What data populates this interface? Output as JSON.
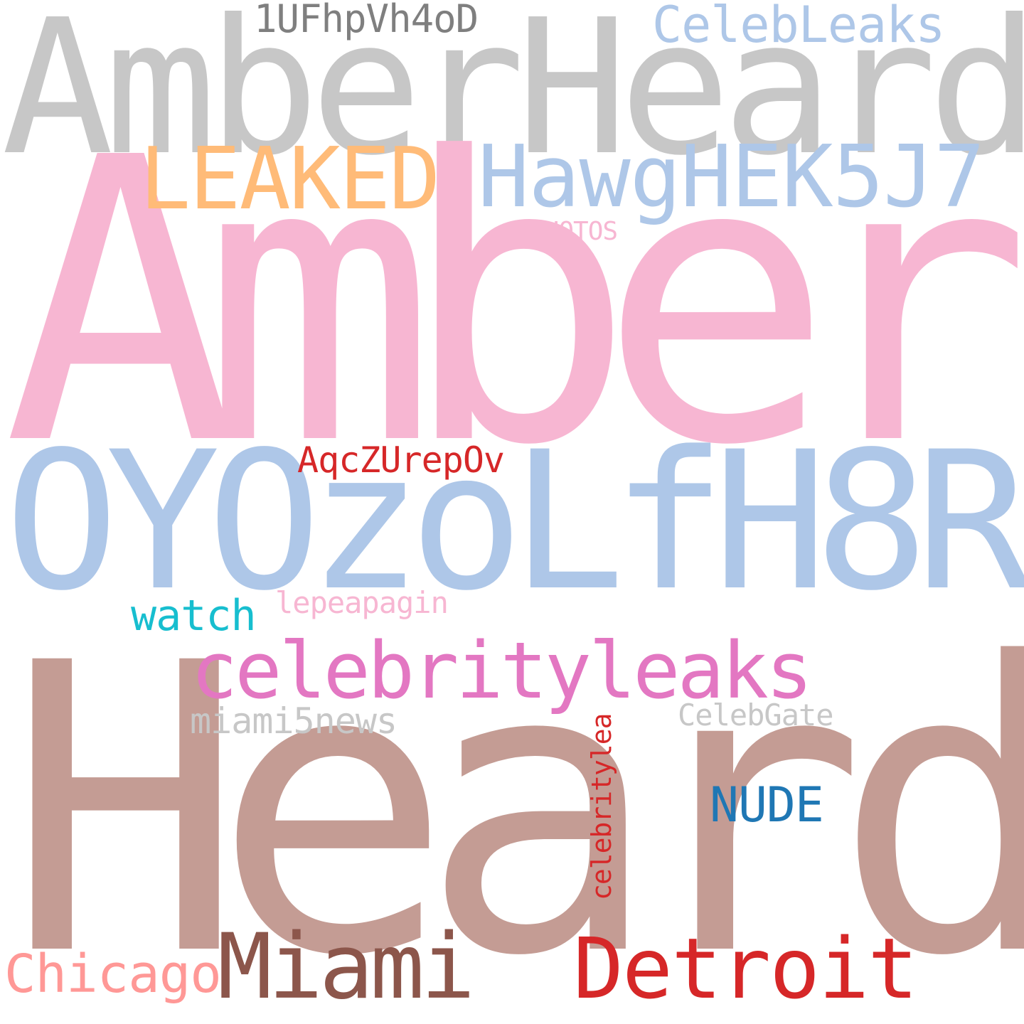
{
  "words": [
    {
      "text": "AmberHeard",
      "color": "#c7c7c7"
    },
    {
      "text": "Amber",
      "color": "#f7b6d2"
    },
    {
      "text": "Heard",
      "color": "#c49c94"
    },
    {
      "text": "OYOzoLfH8R",
      "color": "#aec7e8"
    },
    {
      "text": "HawgHEK5J7",
      "color": "#aec7e8"
    },
    {
      "text": "LEAKED",
      "color": "#ffbb78"
    },
    {
      "text": "celebrityleaks",
      "color": "#e377c2"
    },
    {
      "text": "Miami",
      "color": "#8c564b"
    },
    {
      "text": "Detroit",
      "color": "#d62728"
    },
    {
      "text": "CelebLeaks",
      "color": "#aec7e8"
    },
    {
      "text": "1UFhpVh4oD",
      "color": "#7f7f7f"
    },
    {
      "text": "Chicago",
      "color": "#ff9896"
    },
    {
      "text": "NUDE",
      "color": "#1f77b4"
    },
    {
      "text": "watch",
      "color": "#17becf"
    },
    {
      "text": "AqcZUrepOv",
      "color": "#d62728"
    },
    {
      "text": "miami5news",
      "color": "#c7c7c7"
    },
    {
      "text": "lepeapagin",
      "color": "#f7b6d2"
    },
    {
      "text": "CelebGate",
      "color": "#c7c7c7"
    },
    {
      "text": "PHOTOS",
      "color": "#f7b6d2"
    },
    {
      "text": "celebritylea",
      "color": "#d62728"
    }
  ]
}
